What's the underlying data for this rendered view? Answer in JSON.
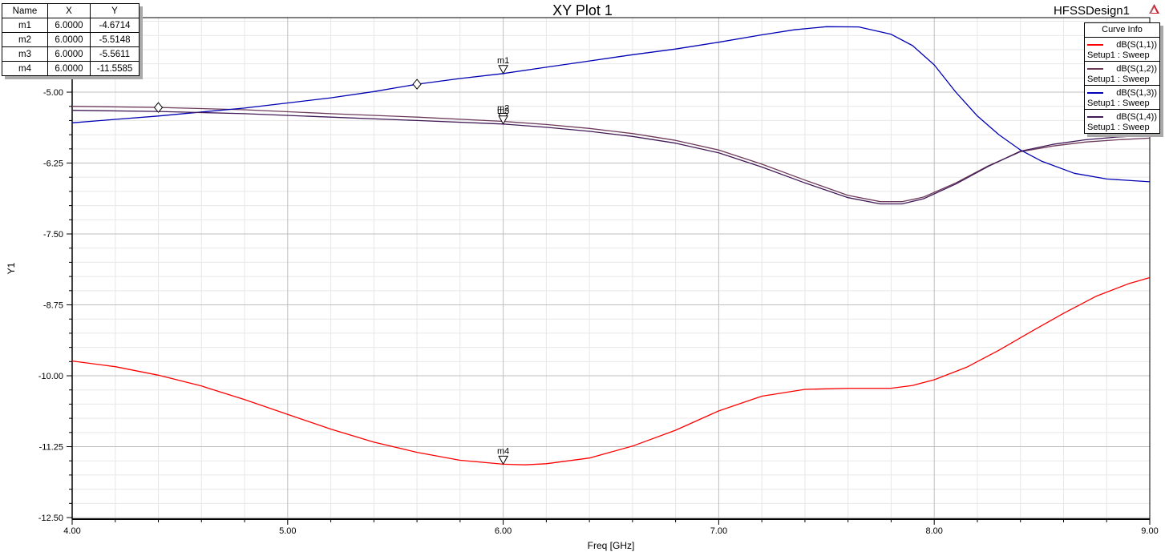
{
  "header": {
    "title": "XY Plot 1",
    "design_name": "HFSSDesign1"
  },
  "colors": {
    "axis": "#000000",
    "grid_major": "#bfbfbf",
    "grid_minor": "#e7e7e7",
    "shadow": "#a9a9a9",
    "marker_fill": "#ffffff",
    "logo_red": "#cf1f2f"
  },
  "marker_table": {
    "headers": [
      "Name",
      "X",
      "Y"
    ],
    "rows": [
      [
        "m1",
        "6.0000",
        "-4.6714"
      ],
      [
        "m2",
        "6.0000",
        "-5.5148"
      ],
      [
        "m3",
        "6.0000",
        "-5.5611"
      ],
      [
        "m4",
        "6.0000",
        "-11.5585"
      ]
    ]
  },
  "legend": {
    "title": "Curve Info",
    "entries": [
      {
        "label": "dB(S(1,1))",
        "sublabel": "Setup1 : Sweep",
        "color": "#ff0000"
      },
      {
        "label": "dB(S(1,2))",
        "sublabel": "Setup1 : Sweep",
        "color": "#6e3a5a"
      },
      {
        "label": "dB(S(1,3))",
        "sublabel": "Setup1 : Sweep",
        "color": "#0000b4"
      },
      {
        "label": "dB(S(1,4))",
        "sublabel": "Setup1 : Sweep",
        "color": "#401956"
      }
    ]
  },
  "chart_data": {
    "type": "line",
    "title": "XY Plot 1",
    "xlabel": "Freq [GHz]",
    "ylabel": "Y1",
    "grid": true,
    "legend_position": "top-right",
    "x_axis": {
      "min": 4.0,
      "max": 9.0,
      "major_ticks": [
        4,
        5,
        6,
        7,
        8,
        9
      ],
      "tick_labels": [
        "4.00",
        "5.00",
        "6.00",
        "7.00",
        "8.00",
        "9.00"
      ],
      "minor_step": 0.2
    },
    "y_axis": {
      "min": -12.528,
      "max": -3.686,
      "major_ticks": [
        -5.0,
        -6.25,
        -7.5,
        -8.75,
        -10.0,
        -11.25,
        -12.5
      ],
      "tick_labels": [
        "-5.00",
        "-6.25",
        "-7.50",
        "-8.75",
        "-10.00",
        "-11.25",
        "-12.50"
      ],
      "minor_step": 0.25
    },
    "series": [
      {
        "name": "dB(S(1,1))",
        "setup": "Setup1 : Sweep",
        "color": "#ff0000",
        "points": [
          [
            4.0,
            -9.74
          ],
          [
            4.2,
            -9.84
          ],
          [
            4.4,
            -9.99
          ],
          [
            4.6,
            -10.18
          ],
          [
            4.8,
            -10.42
          ],
          [
            5.0,
            -10.68
          ],
          [
            5.2,
            -10.94
          ],
          [
            5.4,
            -11.17
          ],
          [
            5.6,
            -11.35
          ],
          [
            5.8,
            -11.49
          ],
          [
            6.0,
            -11.5585
          ],
          [
            6.1,
            -11.57
          ],
          [
            6.2,
            -11.55
          ],
          [
            6.4,
            -11.45
          ],
          [
            6.6,
            -11.24
          ],
          [
            6.8,
            -10.96
          ],
          [
            7.0,
            -10.62
          ],
          [
            7.2,
            -10.36
          ],
          [
            7.4,
            -10.24
          ],
          [
            7.6,
            -10.22
          ],
          [
            7.8,
            -10.22
          ],
          [
            7.9,
            -10.17
          ],
          [
            8.0,
            -10.07
          ],
          [
            8.15,
            -9.85
          ],
          [
            8.3,
            -9.55
          ],
          [
            8.45,
            -9.22
          ],
          [
            8.6,
            -8.9
          ],
          [
            8.75,
            -8.6
          ],
          [
            8.9,
            -8.38
          ],
          [
            9.0,
            -8.27
          ]
        ]
      },
      {
        "name": "dB(S(1,2))",
        "setup": "Setup1 : Sweep",
        "color": "#6e3a5a",
        "points": [
          [
            4.0,
            -5.25
          ],
          [
            4.4,
            -5.27
          ],
          [
            4.8,
            -5.31
          ],
          [
            5.2,
            -5.38
          ],
          [
            5.6,
            -5.44
          ],
          [
            6.0,
            -5.5148
          ],
          [
            6.2,
            -5.57
          ],
          [
            6.4,
            -5.64
          ],
          [
            6.6,
            -5.73
          ],
          [
            6.8,
            -5.85
          ],
          [
            7.0,
            -6.02
          ],
          [
            7.2,
            -6.27
          ],
          [
            7.4,
            -6.55
          ],
          [
            7.6,
            -6.82
          ],
          [
            7.75,
            -6.93
          ],
          [
            7.85,
            -6.93
          ],
          [
            7.95,
            -6.85
          ],
          [
            8.1,
            -6.6
          ],
          [
            8.25,
            -6.3
          ],
          [
            8.4,
            -6.05
          ],
          [
            8.55,
            -5.95
          ],
          [
            8.7,
            -5.88
          ],
          [
            8.85,
            -5.84
          ],
          [
            9.0,
            -5.81
          ]
        ]
      },
      {
        "name": "dB(S(1,3))",
        "setup": "Setup1 : Sweep",
        "color": "#0000b4",
        "points": [
          [
            4.0,
            -5.54
          ],
          [
            4.2,
            -5.48
          ],
          [
            4.4,
            -5.42
          ],
          [
            4.6,
            -5.35
          ],
          [
            4.8,
            -5.28
          ],
          [
            5.0,
            -5.19
          ],
          [
            5.2,
            -5.1
          ],
          [
            5.4,
            -4.99
          ],
          [
            5.6,
            -4.86
          ],
          [
            5.8,
            -4.76
          ],
          [
            6.0,
            -4.6714
          ],
          [
            6.2,
            -4.56
          ],
          [
            6.4,
            -4.45
          ],
          [
            6.6,
            -4.34
          ],
          [
            6.8,
            -4.24
          ],
          [
            7.0,
            -4.12
          ],
          [
            7.2,
            -3.99
          ],
          [
            7.35,
            -3.9
          ],
          [
            7.5,
            -3.845
          ],
          [
            7.65,
            -3.85
          ],
          [
            7.8,
            -3.98
          ],
          [
            7.9,
            -4.18
          ],
          [
            8.0,
            -4.52
          ],
          [
            8.1,
            -5.0
          ],
          [
            8.2,
            -5.42
          ],
          [
            8.3,
            -5.75
          ],
          [
            8.4,
            -6.02
          ],
          [
            8.5,
            -6.22
          ],
          [
            8.65,
            -6.43
          ],
          [
            8.8,
            -6.53
          ],
          [
            9.0,
            -6.58
          ]
        ]
      },
      {
        "name": "dB(S(1,4))",
        "setup": "Setup1 : Sweep",
        "color": "#401956",
        "points": [
          [
            4.0,
            -5.32
          ],
          [
            4.4,
            -5.34
          ],
          [
            4.8,
            -5.38
          ],
          [
            5.2,
            -5.44
          ],
          [
            5.6,
            -5.5
          ],
          [
            6.0,
            -5.5611
          ],
          [
            6.2,
            -5.62
          ],
          [
            6.4,
            -5.69
          ],
          [
            6.6,
            -5.78
          ],
          [
            6.8,
            -5.9
          ],
          [
            7.0,
            -6.07
          ],
          [
            7.2,
            -6.32
          ],
          [
            7.4,
            -6.6
          ],
          [
            7.6,
            -6.86
          ],
          [
            7.75,
            -6.97
          ],
          [
            7.85,
            -6.97
          ],
          [
            7.95,
            -6.88
          ],
          [
            8.1,
            -6.62
          ],
          [
            8.25,
            -6.31
          ],
          [
            8.4,
            -6.04
          ],
          [
            8.55,
            -5.92
          ],
          [
            8.7,
            -5.84
          ],
          [
            8.85,
            -5.79
          ],
          [
            9.0,
            -5.76
          ]
        ]
      }
    ],
    "markers": [
      {
        "name": "m1",
        "x": 6.0,
        "y": -4.6714
      },
      {
        "name": "m2",
        "x": 6.0,
        "y": -5.5148
      },
      {
        "name": "m3",
        "x": 6.0,
        "y": -5.5611
      },
      {
        "name": "m4",
        "x": 6.0,
        "y": -11.5585
      }
    ],
    "symbols": [
      {
        "shape": "diamond",
        "x": 4.4,
        "y": -5.27
      },
      {
        "shape": "diamond",
        "x": 5.6,
        "y": -4.86
      }
    ]
  }
}
